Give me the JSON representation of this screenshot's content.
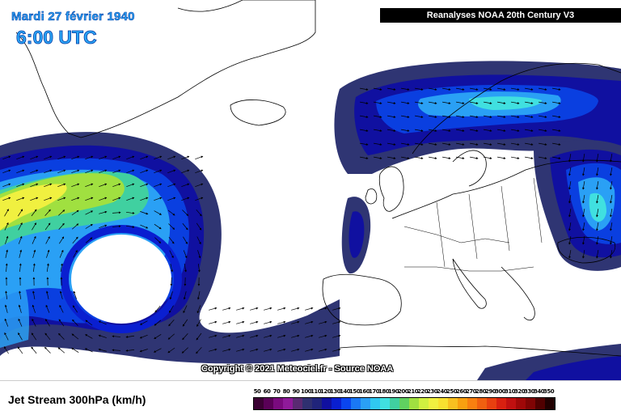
{
  "header": {
    "date": "Mardi 27 février 1940",
    "time": "6:00 UTC",
    "source": "Reanalyses NOAA 20th Century V3"
  },
  "copyright": "Copyright © 2021 Meteociel.fr - Source NOAA",
  "legend": {
    "title": "Jet Stream 300hPa (km/h)",
    "ticks": [
      "50",
      "60",
      "70",
      "80",
      "90",
      "100",
      "110",
      "120",
      "130",
      "140",
      "150",
      "160",
      "170",
      "180",
      "190",
      "200",
      "210",
      "220",
      "230",
      "240",
      "250",
      "260",
      "270",
      "280",
      "290",
      "300",
      "310",
      "320",
      "330",
      "340",
      "350"
    ],
    "colors": [
      "#3b0033",
      "#5a0057",
      "#7a0a7e",
      "#8f1a9a",
      "#5a2a72",
      "#2f3070",
      "#20247a",
      "#1010a0",
      "#0a1fd0",
      "#0a45f0",
      "#1a78f5",
      "#2aa0f5",
      "#30c8f0",
      "#40e0e0",
      "#40d0a0",
      "#60d060",
      "#a0e040",
      "#d0f040",
      "#f0f040",
      "#f8e030",
      "#f8c020",
      "#f8a010",
      "#f88010",
      "#f06010",
      "#e84010",
      "#d82010",
      "#c01010",
      "#a00808",
      "#800404",
      "#500000",
      "#200000"
    ]
  },
  "map": {
    "wind_zones": [
      {
        "name": "atlantic-jet",
        "peak_kmh": 230
      },
      {
        "name": "scandinavia-jet",
        "peak_kmh": 160
      },
      {
        "name": "russia-jet",
        "peak_kmh": 150
      },
      {
        "name": "biscay-jet",
        "peak_kmh": 120
      }
    ]
  }
}
